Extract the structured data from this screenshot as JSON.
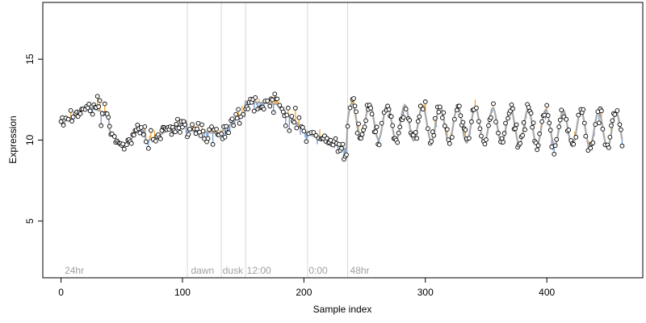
{
  "chart_data": {
    "type": "scatter",
    "title": "",
    "xlabel": "Sample index",
    "ylabel": "Expression",
    "xlim": [
      -15,
      479
    ],
    "ylim": [
      1.5,
      18.5
    ],
    "x_ticks": [
      0,
      100,
      200,
      300,
      400
    ],
    "y_ticks": [
      5,
      10,
      15
    ],
    "grid": false,
    "legend": "none",
    "colors": {
      "fit_line": "#a8a8a8",
      "residual_positive": "#f4a62a",
      "residual_negative": "#6f98cf",
      "point_edge": "#000000",
      "point_fill": "#ffffff",
      "divider": "#d8d8d8",
      "annotation": "#a0a0a0"
    },
    "dividers": [
      104,
      132,
      152,
      203,
      236
    ],
    "annotations": [
      {
        "x": 3,
        "label": "24hr"
      },
      {
        "x": 107,
        "label": "dawn"
      },
      {
        "x": 133,
        "label": "dusk"
      },
      {
        "x": 153,
        "label": "12:00"
      },
      {
        "x": 204,
        "label": "0:00"
      },
      {
        "x": 238,
        "label": "48hr"
      }
    ],
    "segments": [
      {
        "x0": 0,
        "x1": 24,
        "kind": "rise",
        "from": 11.0,
        "to": 12.2,
        "noise": 0.25
      },
      {
        "x0": 24,
        "x1": 40,
        "kind": "flat",
        "from": 12.0,
        "to": 11.6,
        "noise": 0.55
      },
      {
        "x0": 40,
        "x1": 70,
        "kind": "dip",
        "from": 10.6,
        "to": 9.8,
        "noise": 0.2
      },
      {
        "x0": 70,
        "x1": 104,
        "kind": "rise",
        "from": 9.9,
        "to": 11.2,
        "noise": 0.3
      },
      {
        "x0": 104,
        "x1": 132,
        "kind": "flat",
        "from": 10.6,
        "to": 10.4,
        "noise": 0.35
      },
      {
        "x0": 132,
        "x1": 152,
        "kind": "rise",
        "from": 10.5,
        "to": 11.8,
        "noise": 0.45
      },
      {
        "x0": 152,
        "x1": 180,
        "kind": "flat",
        "from": 12.4,
        "to": 12.2,
        "noise": 0.35
      },
      {
        "x0": 180,
        "x1": 203,
        "kind": "fall",
        "from": 12.0,
        "to": 10.4,
        "noise": 0.45
      },
      {
        "x0": 203,
        "x1": 236,
        "kind": "fall",
        "from": 10.4,
        "to": 9.4,
        "noise": 0.35
      },
      {
        "x0": 236,
        "x1": 463,
        "kind": "osc",
        "from": 11.2,
        "to": 10.6,
        "amp": 1.1,
        "period": 14.5,
        "noise": 0.35
      }
    ],
    "n_points": 463
  }
}
